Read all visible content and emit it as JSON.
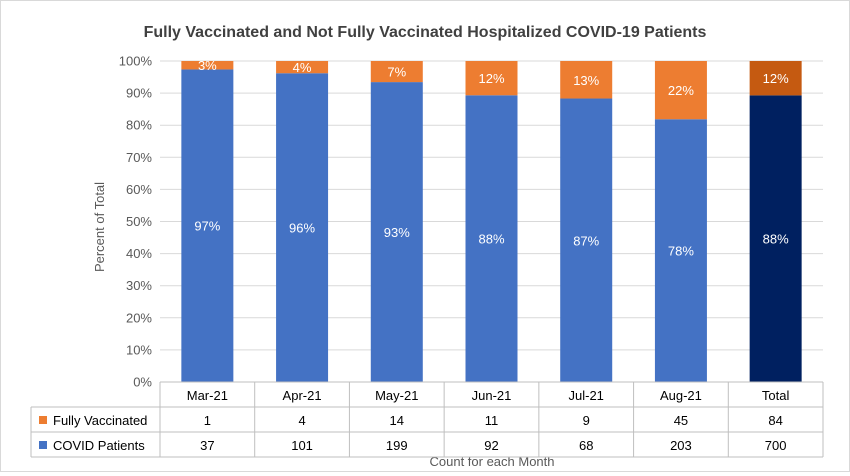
{
  "chart_data": {
    "type": "bar",
    "stacked": "percent",
    "title": "Fully Vaccinated and Not Fully Vaccinated Hospitalized COVID-19 Patients",
    "xlabel": "Count for each Month",
    "ylabel": "Percent of Total",
    "ylim": [
      0,
      100
    ],
    "yticks": [
      "0%",
      "10%",
      "20%",
      "30%",
      "40%",
      "50%",
      "60%",
      "70%",
      "80%",
      "90%",
      "100%"
    ],
    "categories": [
      "Mar-21",
      "Apr-21",
      "May-21",
      "Jun-21",
      "Jul-21",
      "Aug-21",
      "Total"
    ],
    "series": [
      {
        "name": "COVID Patients",
        "color": "#4472c4",
        "total_color": "#002060",
        "values": [
          37,
          101,
          199,
          92,
          68,
          203,
          700
        ],
        "percent_labels": [
          "97%",
          "96%",
          "93%",
          "88%",
          "87%",
          "78%",
          "88%"
        ]
      },
      {
        "name": "Fully Vaccinated",
        "color": "#ed7d31",
        "total_color": "#c55a11",
        "values": [
          1,
          4,
          14,
          11,
          9,
          45,
          84
        ],
        "percent_labels": [
          "3%",
          "4%",
          "7%",
          "12%",
          "13%",
          "22%",
          "12%"
        ]
      }
    ],
    "grid": true,
    "legend": "data-table"
  }
}
